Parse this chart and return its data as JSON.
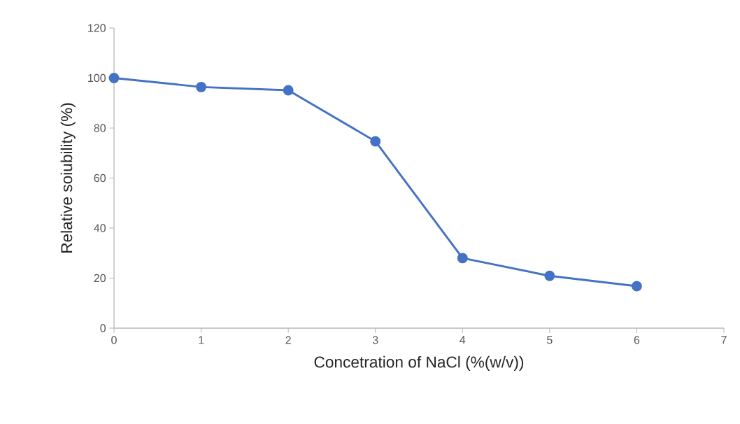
{
  "chart_data": {
    "type": "line",
    "xlabel": "Concetration of NaCl (%(w/v))",
    "ylabel": "Relative soiubility (%)",
    "x": [
      0,
      1,
      2,
      3,
      4,
      5,
      6
    ],
    "series": [
      {
        "color": "#4472c4",
        "values": [
          100,
          96.4,
          95.1,
          74.7,
          28.0,
          20.9,
          16.8
        ]
      }
    ],
    "xlim": [
      0,
      7
    ],
    "xticks": [
      0,
      1,
      2,
      3,
      4,
      5,
      6,
      7
    ],
    "ylim": [
      0,
      120
    ],
    "yticks": [
      0,
      20,
      40,
      60,
      80,
      100,
      120
    ],
    "marker": "circle",
    "line_style": "solid"
  }
}
